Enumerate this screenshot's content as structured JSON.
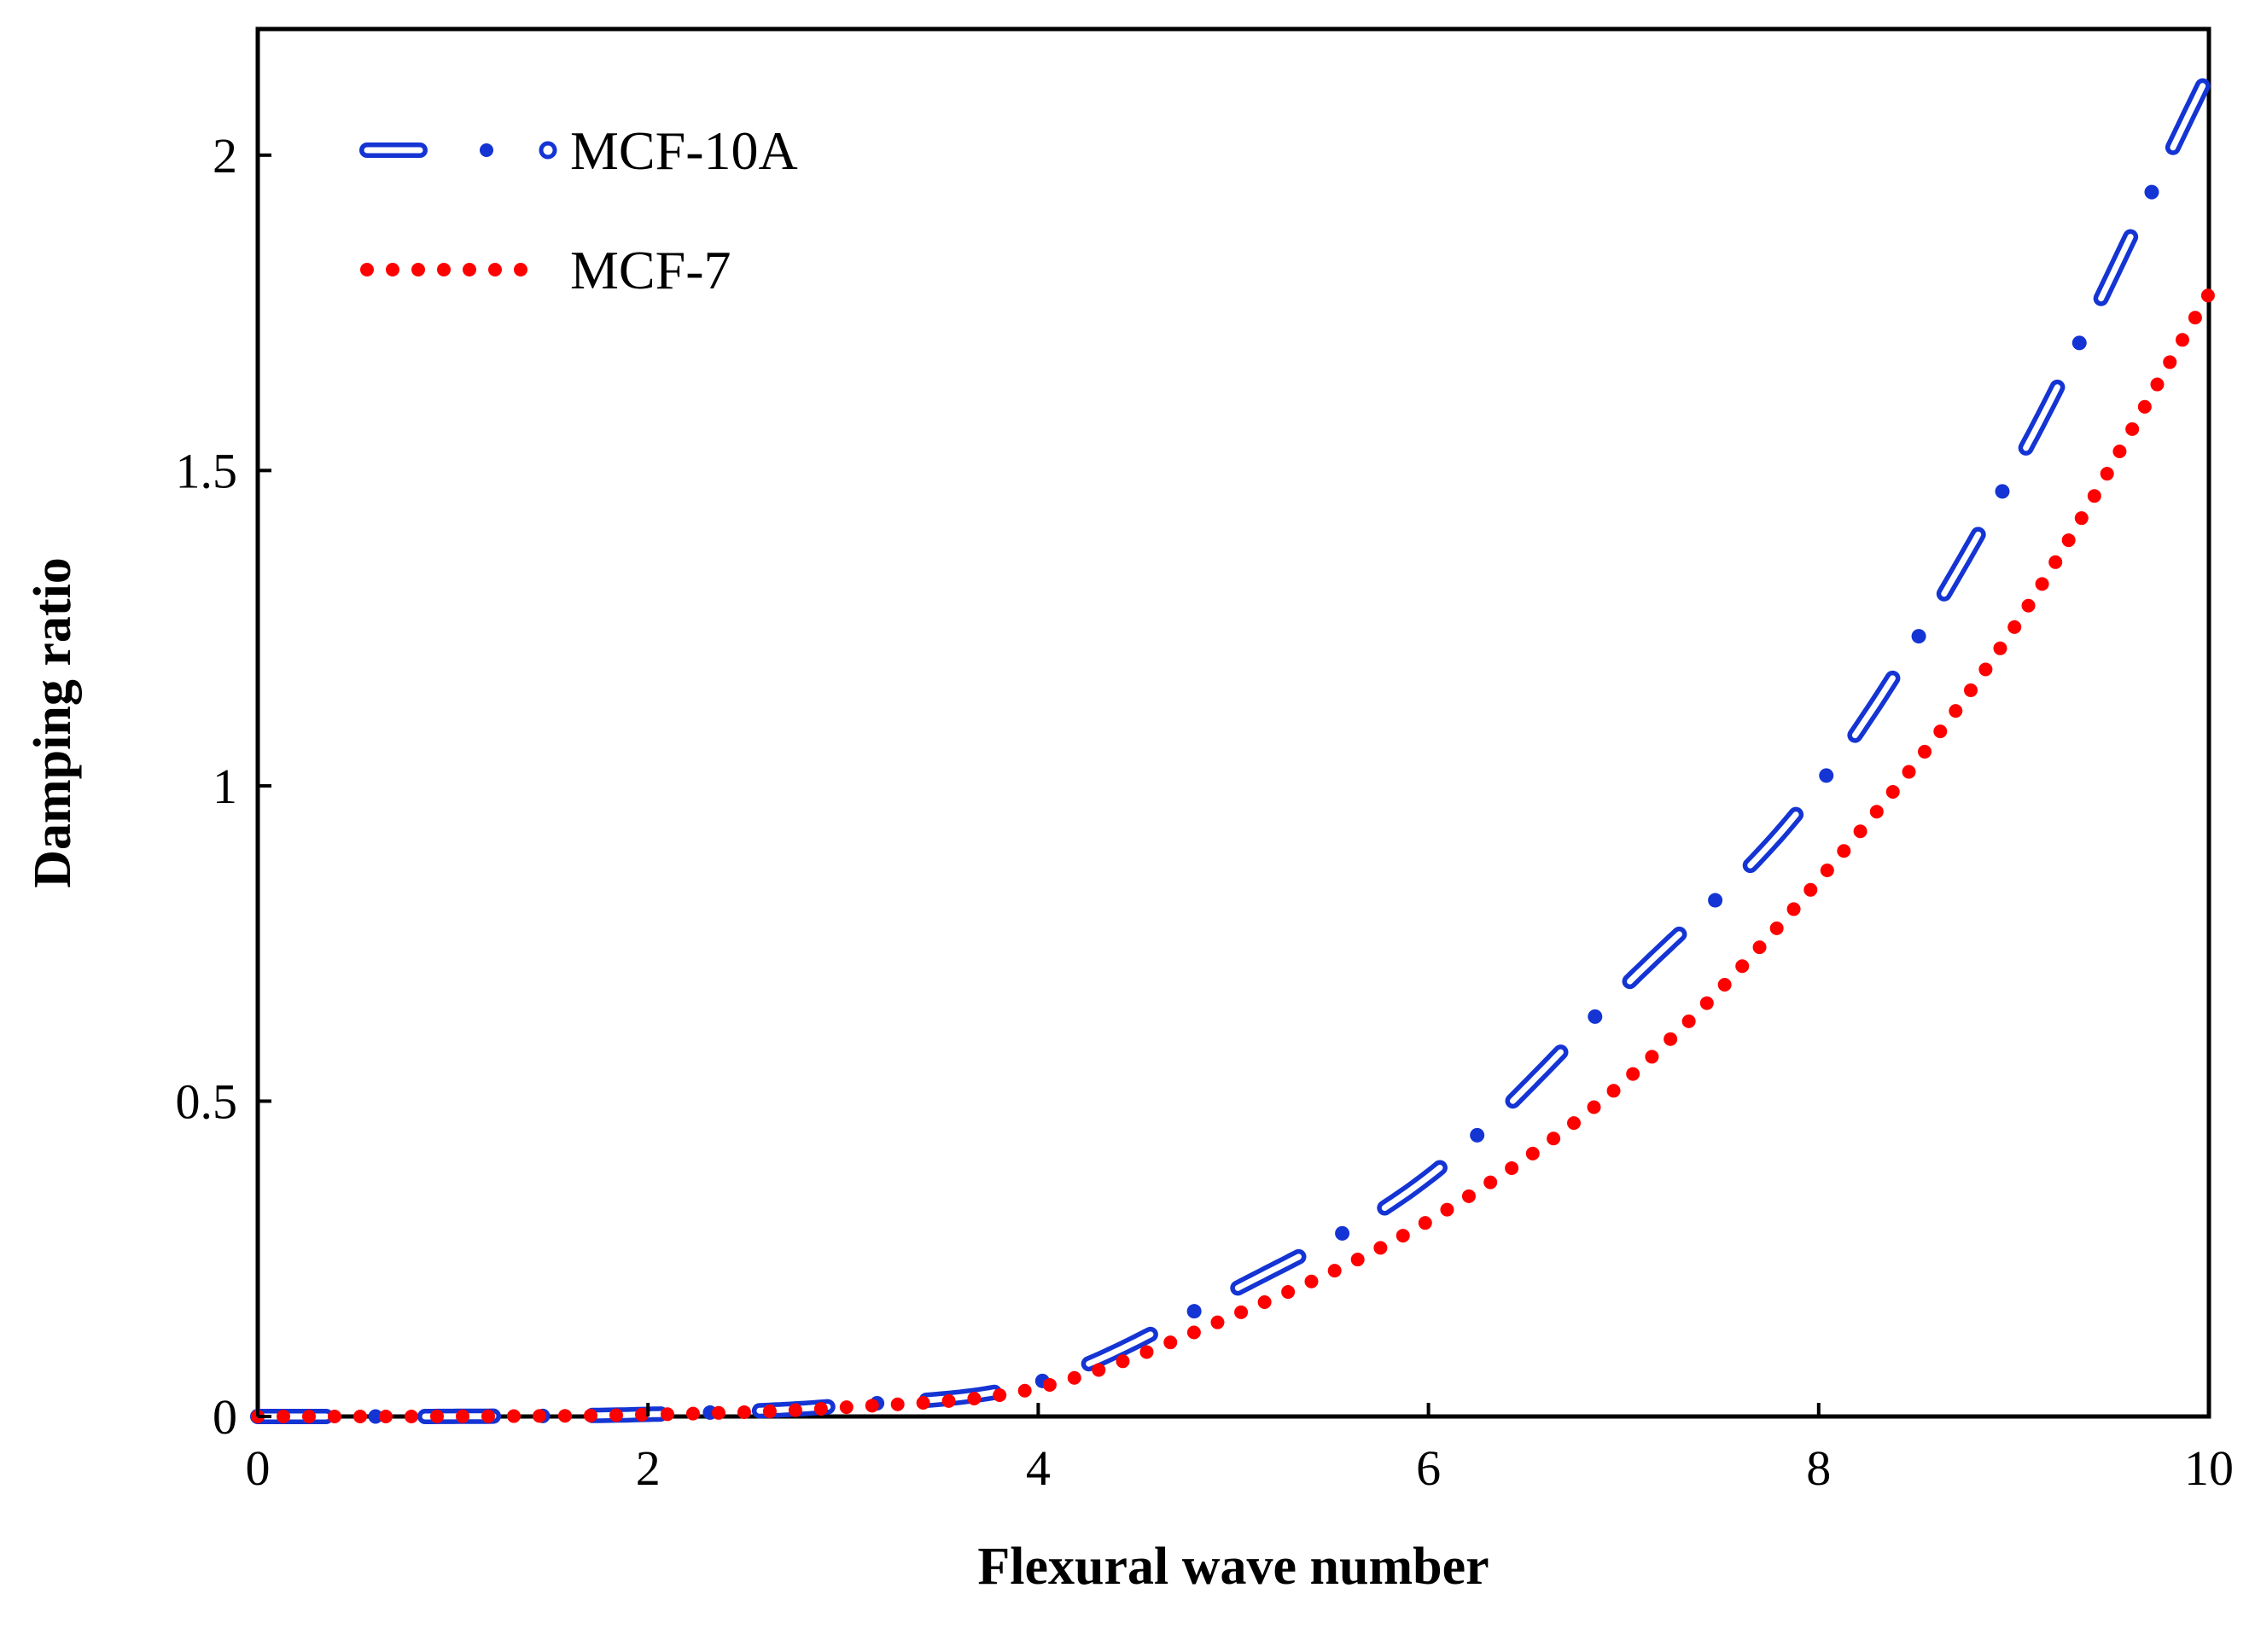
{
  "chart_data": {
    "type": "line",
    "title": "",
    "xlabel": "Flexural wave number",
    "ylabel": "Damping ratio",
    "xlim": [
      0,
      10
    ],
    "ylim": [
      0,
      2.2
    ],
    "xticks": [
      0,
      2,
      4,
      6,
      8,
      10
    ],
    "xtick_labels": [
      "0",
      "2",
      "4",
      "6",
      "8",
      "10"
    ],
    "yticks": [
      0,
      0.5,
      1,
      1.5,
      2
    ],
    "ytick_labels": [
      "0",
      "0.5",
      "1",
      "1.5",
      "2"
    ],
    "grid": false,
    "legend_position": "top-left",
    "series": [
      {
        "name": "MCF-10A",
        "color": "#1434d4",
        "style": "long-dash-dot",
        "x": [
          0,
          1,
          2,
          3,
          4,
          5,
          6,
          7,
          8,
          9,
          10
        ],
        "y": [
          0,
          0.0002,
          0.0034,
          0.0172,
          0.0544,
          0.2,
          0.38,
          0.68,
          1.0,
          1.5,
          2.13
        ]
      },
      {
        "name": "MCF-7",
        "color": "#ff0000",
        "style": "dotted",
        "x": [
          0,
          1,
          2,
          3,
          4,
          5,
          6,
          7,
          8,
          9,
          10
        ],
        "y": [
          0,
          0.0002,
          0.003,
          0.0144,
          0.0456,
          0.16,
          0.31,
          0.53,
          0.85,
          1.25,
          1.78
        ]
      }
    ]
  }
}
